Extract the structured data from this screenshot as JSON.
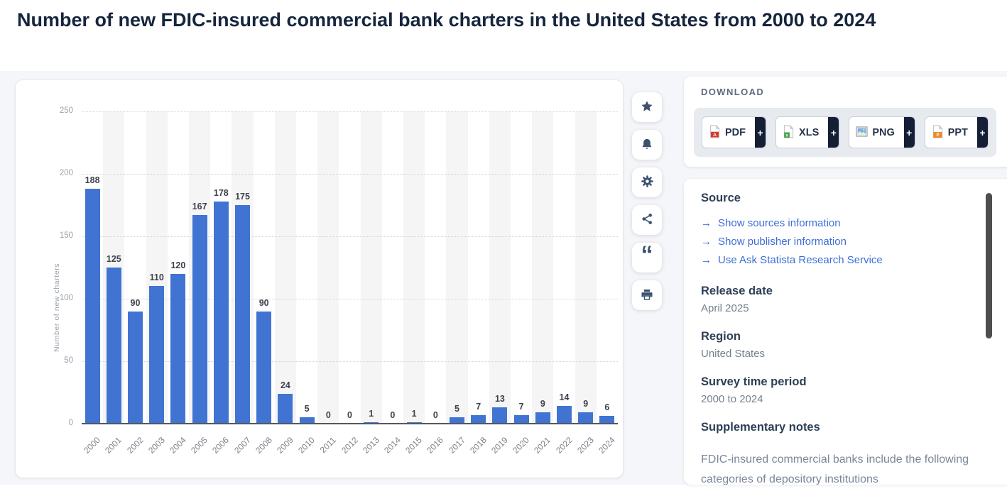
{
  "page_title": "Number of new FDIC-insured commercial bank charters in the United States from 2000 to 2024",
  "chart_data": {
    "type": "bar",
    "title": "Number of new FDIC-insured commercial bank charters in the United States from 2000 to 2024",
    "categories": [
      "2000",
      "2001",
      "2002",
      "2003",
      "2004",
      "2005",
      "2006",
      "2007",
      "2008",
      "2009",
      "2010",
      "2011",
      "2012",
      "2013",
      "2014",
      "2015",
      "2016",
      "2017",
      "2018",
      "2019",
      "2020",
      "2021",
      "2022",
      "2023",
      "2024"
    ],
    "values": [
      188,
      125,
      90,
      110,
      120,
      167,
      178,
      175,
      90,
      24,
      5,
      0,
      0,
      1,
      0,
      1,
      0,
      5,
      7,
      13,
      7,
      9,
      14,
      9,
      6
    ],
    "xlabel": "",
    "ylabel": "Number of new charters",
    "yticks": [
      0,
      50,
      100,
      150,
      200,
      250
    ],
    "ylim": [
      0,
      250
    ],
    "bar_color": "#4173D2",
    "grid": "horizontal-dotted",
    "legend": "none"
  },
  "toolbar": {
    "icons": [
      "star-icon",
      "bell-icon",
      "gear-icon",
      "share-icon",
      "quote-icon",
      "printer-icon"
    ]
  },
  "download": {
    "label": "DOWNLOAD",
    "plus_label": "+",
    "buttons": [
      {
        "type": "pdf",
        "label": "PDF"
      },
      {
        "type": "xls",
        "label": "XLS"
      },
      {
        "type": "png",
        "label": "PNG"
      },
      {
        "type": "ppt",
        "label": "PPT"
      }
    ]
  },
  "sidebar": {
    "source": {
      "heading": "Source",
      "arrow": "→",
      "links": [
        "Show sources information",
        "Show publisher information",
        "Use Ask Statista Research Service"
      ]
    },
    "release_date": {
      "heading": "Release date",
      "value": "April 2025"
    },
    "region": {
      "heading": "Region",
      "value": "United States"
    },
    "survey_period": {
      "heading": "Survey time period",
      "value": "2000 to 2024"
    },
    "supplementary_notes": {
      "heading": "Supplementary notes",
      "text": "FDIC-insured commercial banks include the following categories of depository institutions"
    }
  },
  "colors": {
    "bar_blue": "#4173D2",
    "link_blue": "#3E6FD6",
    "navy": "#141F36",
    "icon_navy": "#3C5270"
  }
}
